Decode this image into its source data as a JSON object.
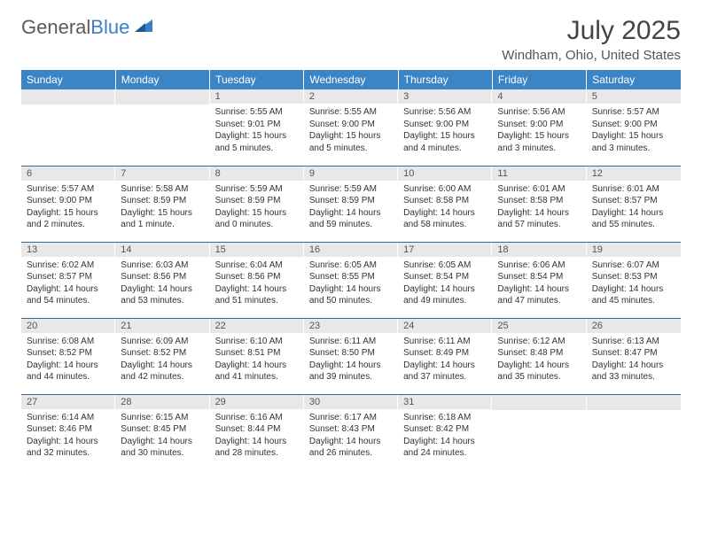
{
  "brand": {
    "word1": "General",
    "word2": "Blue"
  },
  "title": "July 2025",
  "location": "Windham, Ohio, United States",
  "colors": {
    "header_bg": "#3b85c6",
    "header_text": "#ffffff",
    "row_divider": "#2f6aa3",
    "daynum_bg": "#e8e8e8",
    "body_text": "#333333",
    "brand_gray": "#5a5a5a",
    "brand_blue": "#3b7fc4"
  },
  "weekdays": [
    "Sunday",
    "Monday",
    "Tuesday",
    "Wednesday",
    "Thursday",
    "Friday",
    "Saturday"
  ],
  "weeks": [
    [
      null,
      null,
      {
        "n": "1",
        "sunrise": "5:55 AM",
        "sunset": "9:01 PM",
        "daylight": "15 hours and 5 minutes."
      },
      {
        "n": "2",
        "sunrise": "5:55 AM",
        "sunset": "9:00 PM",
        "daylight": "15 hours and 5 minutes."
      },
      {
        "n": "3",
        "sunrise": "5:56 AM",
        "sunset": "9:00 PM",
        "daylight": "15 hours and 4 minutes."
      },
      {
        "n": "4",
        "sunrise": "5:56 AM",
        "sunset": "9:00 PM",
        "daylight": "15 hours and 3 minutes."
      },
      {
        "n": "5",
        "sunrise": "5:57 AM",
        "sunset": "9:00 PM",
        "daylight": "15 hours and 3 minutes."
      }
    ],
    [
      {
        "n": "6",
        "sunrise": "5:57 AM",
        "sunset": "9:00 PM",
        "daylight": "15 hours and 2 minutes."
      },
      {
        "n": "7",
        "sunrise": "5:58 AM",
        "sunset": "8:59 PM",
        "daylight": "15 hours and 1 minute."
      },
      {
        "n": "8",
        "sunrise": "5:59 AM",
        "sunset": "8:59 PM",
        "daylight": "15 hours and 0 minutes."
      },
      {
        "n": "9",
        "sunrise": "5:59 AM",
        "sunset": "8:59 PM",
        "daylight": "14 hours and 59 minutes."
      },
      {
        "n": "10",
        "sunrise": "6:00 AM",
        "sunset": "8:58 PM",
        "daylight": "14 hours and 58 minutes."
      },
      {
        "n": "11",
        "sunrise": "6:01 AM",
        "sunset": "8:58 PM",
        "daylight": "14 hours and 57 minutes."
      },
      {
        "n": "12",
        "sunrise": "6:01 AM",
        "sunset": "8:57 PM",
        "daylight": "14 hours and 55 minutes."
      }
    ],
    [
      {
        "n": "13",
        "sunrise": "6:02 AM",
        "sunset": "8:57 PM",
        "daylight": "14 hours and 54 minutes."
      },
      {
        "n": "14",
        "sunrise": "6:03 AM",
        "sunset": "8:56 PM",
        "daylight": "14 hours and 53 minutes."
      },
      {
        "n": "15",
        "sunrise": "6:04 AM",
        "sunset": "8:56 PM",
        "daylight": "14 hours and 51 minutes."
      },
      {
        "n": "16",
        "sunrise": "6:05 AM",
        "sunset": "8:55 PM",
        "daylight": "14 hours and 50 minutes."
      },
      {
        "n": "17",
        "sunrise": "6:05 AM",
        "sunset": "8:54 PM",
        "daylight": "14 hours and 49 minutes."
      },
      {
        "n": "18",
        "sunrise": "6:06 AM",
        "sunset": "8:54 PM",
        "daylight": "14 hours and 47 minutes."
      },
      {
        "n": "19",
        "sunrise": "6:07 AM",
        "sunset": "8:53 PM",
        "daylight": "14 hours and 45 minutes."
      }
    ],
    [
      {
        "n": "20",
        "sunrise": "6:08 AM",
        "sunset": "8:52 PM",
        "daylight": "14 hours and 44 minutes."
      },
      {
        "n": "21",
        "sunrise": "6:09 AM",
        "sunset": "8:52 PM",
        "daylight": "14 hours and 42 minutes."
      },
      {
        "n": "22",
        "sunrise": "6:10 AM",
        "sunset": "8:51 PM",
        "daylight": "14 hours and 41 minutes."
      },
      {
        "n": "23",
        "sunrise": "6:11 AM",
        "sunset": "8:50 PM",
        "daylight": "14 hours and 39 minutes."
      },
      {
        "n": "24",
        "sunrise": "6:11 AM",
        "sunset": "8:49 PM",
        "daylight": "14 hours and 37 minutes."
      },
      {
        "n": "25",
        "sunrise": "6:12 AM",
        "sunset": "8:48 PM",
        "daylight": "14 hours and 35 minutes."
      },
      {
        "n": "26",
        "sunrise": "6:13 AM",
        "sunset": "8:47 PM",
        "daylight": "14 hours and 33 minutes."
      }
    ],
    [
      {
        "n": "27",
        "sunrise": "6:14 AM",
        "sunset": "8:46 PM",
        "daylight": "14 hours and 32 minutes."
      },
      {
        "n": "28",
        "sunrise": "6:15 AM",
        "sunset": "8:45 PM",
        "daylight": "14 hours and 30 minutes."
      },
      {
        "n": "29",
        "sunrise": "6:16 AM",
        "sunset": "8:44 PM",
        "daylight": "14 hours and 28 minutes."
      },
      {
        "n": "30",
        "sunrise": "6:17 AM",
        "sunset": "8:43 PM",
        "daylight": "14 hours and 26 minutes."
      },
      {
        "n": "31",
        "sunrise": "6:18 AM",
        "sunset": "8:42 PM",
        "daylight": "14 hours and 24 minutes."
      },
      null,
      null
    ]
  ],
  "labels": {
    "sunrise": "Sunrise:",
    "sunset": "Sunset:",
    "daylight": "Daylight:"
  }
}
